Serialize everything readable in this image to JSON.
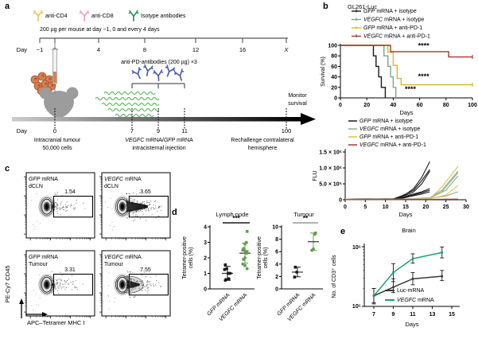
{
  "panels": {
    "a": "a",
    "b": "b",
    "c": "c",
    "d": "d",
    "e": "e"
  },
  "panel_a": {
    "antibody_legend": [
      {
        "label": "anti-CD4",
        "color": "#ecc95e"
      },
      {
        "label": "anti-CD8",
        "color": "#f2a6b4"
      },
      {
        "label": "Isotype antibodies",
        "color": "#27995a"
      }
    ],
    "dose_text": "200 µg per mouse at day −1, 0 and every 4 days",
    "day_axis_label": "Day",
    "top_days": [
      "−1",
      "0",
      "4",
      "8",
      "12",
      "16",
      "X"
    ],
    "anti_pd_text": "anti-PD-antibodies (200 µg) ×3",
    "anti_pd_color": "#4d5fa8",
    "mrna_color": "#49b04f",
    "bottom_day_label": "Day",
    "bottom_days": [
      "0",
      "7",
      "9",
      "11",
      "100"
    ],
    "monitor_lines": [
      "Monitor",
      "survival"
    ],
    "caption_tumour": [
      "Intracranial tumour",
      "50,000 cells"
    ],
    "caption_mrna": [
      "VEGFC mRNA/GFP mRNA",
      "intracisternal injection"
    ],
    "caption_rechallenge": [
      "Rechallenge contralateral",
      "hemisphere"
    ]
  },
  "panel_c": {
    "xlabel": "APC–Tetramer MHC I",
    "ylabel": "PE-Cy7 CD45",
    "plots": [
      {
        "title_line1": "GFP mRNA",
        "title_line2": "dCLN",
        "value": "1.54",
        "density": "low"
      },
      {
        "title_line1": "VEGFC mRNA",
        "title_line2": "dCLN",
        "value": "3.65",
        "density": "high"
      },
      {
        "title_line1": "GFP mRNA",
        "title_line2": "Tumour",
        "value": "3.31",
        "density": "low"
      },
      {
        "title_line1": "VEGFC mRNA",
        "title_line2": "Tumour",
        "value": "7.55",
        "density": "med"
      }
    ]
  },
  "chart_data": [
    {
      "id": "survival",
      "type": "line",
      "title": "GL261-Luc",
      "xlabel": "Days",
      "ylabel": "Survival (%)",
      "xlim": [
        0,
        100
      ],
      "ylim": [
        0,
        100
      ],
      "xticks": [
        0,
        20,
        40,
        60,
        80,
        100
      ],
      "yticks": [
        0,
        20,
        40,
        60,
        80,
        100
      ],
      "legend_position": "top",
      "series": [
        {
          "name": "GFP mRNA + isotype",
          "color": "#1a1a1a",
          "points": [
            [
              0,
              100
            ],
            [
              25,
              100
            ],
            [
              25,
              80
            ],
            [
              27,
              80
            ],
            [
              27,
              60
            ],
            [
              29,
              60
            ],
            [
              29,
              40
            ],
            [
              31,
              40
            ],
            [
              31,
              20
            ],
            [
              34,
              20
            ],
            [
              34,
              0
            ]
          ]
        },
        {
          "name": "VEGFC mRNA + isotype",
          "color": "#7ca687",
          "points": [
            [
              0,
              100
            ],
            [
              33,
              100
            ],
            [
              33,
              80
            ],
            [
              36,
              80
            ],
            [
              36,
              60
            ],
            [
              38,
              60
            ],
            [
              38,
              40
            ],
            [
              40,
              40
            ],
            [
              40,
              20
            ],
            [
              42,
              20
            ],
            [
              42,
              0
            ]
          ]
        },
        {
          "name": "GFP mRNA + anti-PD-1",
          "color": "#d9b62f",
          "points": [
            [
              0,
              100
            ],
            [
              36,
              100
            ],
            [
              36,
              87
            ],
            [
              40,
              87
            ],
            [
              40,
              62
            ],
            [
              43,
              62
            ],
            [
              43,
              37
            ],
            [
              46,
              37
            ],
            [
              46,
              25
            ],
            [
              100,
              25
            ]
          ]
        },
        {
          "name": "VEGFC mRNA + anti-PD-1",
          "color": "#9e3a2d",
          "points": [
            [
              0,
              100
            ],
            [
              38,
              100
            ],
            [
              38,
              88
            ],
            [
              82,
              88
            ],
            [
              82,
              78
            ],
            [
              100,
              78
            ]
          ]
        }
      ],
      "annotations": [
        {
          "text": "****",
          "x": 63,
          "y": 95
        },
        {
          "text": "****",
          "x": 63,
          "y": 36
        },
        {
          "text": "****",
          "x": 53,
          "y": 12
        }
      ]
    },
    {
      "id": "flu",
      "type": "line",
      "xlabel": "Days",
      "ylabel": "FLU",
      "xlim": [
        0,
        30
      ],
      "ylim": [
        0,
        1500000
      ],
      "xticks": [
        0,
        5,
        10,
        15,
        20,
        25,
        30
      ],
      "yticks": [
        0,
        500000,
        1000000,
        1500000
      ],
      "ytick_labels": [
        "0",
        "5.0 × 10⁵",
        "1.0 × 10⁶",
        "1.5 × 10⁶"
      ],
      "legend": [
        "GFP mRNA + isotype",
        "VEGFC mRNA + isotype",
        "GFP mRNA + anti-PD-1",
        "VEGFC mRNA + anti-PD-1"
      ],
      "legend_colors": [
        "#1a1a1a",
        "#8fae90",
        "#e0c04a",
        "#9e3a2d"
      ],
      "series": [
        {
          "group": "GFP mRNA + isotype",
          "color": "#1a1a1a",
          "points": [
            [
              0,
              10000
            ],
            [
              12,
              30000
            ],
            [
              14,
              80000
            ],
            [
              17,
              350000
            ],
            [
              19,
              700000
            ],
            [
              21,
              1200000
            ]
          ]
        },
        {
          "group": "GFP mRNA + isotype",
          "color": "#1a1a1a",
          "points": [
            [
              0,
              10000
            ],
            [
              12,
              30000
            ],
            [
              14,
              120000
            ],
            [
              17,
              300000
            ],
            [
              19,
              600000
            ],
            [
              21,
              950000
            ]
          ]
        },
        {
          "group": "GFP mRNA + isotype",
          "color": "#1a1a1a",
          "points": [
            [
              0,
              10000
            ],
            [
              12,
              20000
            ],
            [
              14,
              90000
            ],
            [
              17,
              250000
            ],
            [
              19,
              500000
            ],
            [
              21,
              900000
            ]
          ]
        },
        {
          "group": "GFP mRNA + isotype",
          "color": "#1a1a1a",
          "points": [
            [
              0,
              10000
            ],
            [
              12,
              20000
            ],
            [
              14,
              60000
            ],
            [
              16,
              150000
            ],
            [
              19,
              250000
            ],
            [
              21,
              350000
            ]
          ]
        },
        {
          "group": "GFP mRNA + isotype",
          "color": "#1a1a1a",
          "points": [
            [
              0,
              10000
            ],
            [
              12,
              20000
            ],
            [
              14,
              50000
            ],
            [
              16,
              120000
            ],
            [
              19,
              220000
            ],
            [
              21,
              300000
            ]
          ]
        },
        {
          "group": "GFP mRNA + isotype",
          "color": "#1a1a1a",
          "points": [
            [
              0,
              5000
            ],
            [
              12,
              15000
            ],
            [
              14,
              40000
            ],
            [
              16,
              100000
            ],
            [
              19,
              180000
            ],
            [
              21,
              250000
            ]
          ]
        },
        {
          "group": "VEGFC mRNA + isotype",
          "color": "#8fae90",
          "points": [
            [
              0,
              5000
            ],
            [
              14,
              20000
            ],
            [
              21,
              60000
            ],
            [
              24,
              300000
            ],
            [
              28,
              900000
            ]
          ]
        },
        {
          "group": "VEGFC mRNA + isotype",
          "color": "#8fae90",
          "points": [
            [
              0,
              5000
            ],
            [
              14,
              20000
            ],
            [
              21,
              50000
            ],
            [
              24,
              250000
            ],
            [
              28,
              850000
            ]
          ]
        },
        {
          "group": "VEGFC mRNA + isotype",
          "color": "#8fae90",
          "points": [
            [
              0,
              5000
            ],
            [
              14,
              15000
            ],
            [
              21,
              50000
            ],
            [
              25,
              300000
            ],
            [
              28,
              750000
            ]
          ]
        },
        {
          "group": "VEGFC mRNA + isotype",
          "color": "#8fae90",
          "points": [
            [
              0,
              5000
            ],
            [
              14,
              10000
            ],
            [
              21,
              40000
            ],
            [
              25,
              120000
            ],
            [
              28,
              250000
            ]
          ]
        },
        {
          "group": "GFP mRNA + anti-PD-1",
          "color": "#e0c04a",
          "points": [
            [
              0,
              5000
            ],
            [
              14,
              15000
            ],
            [
              21,
              30000
            ],
            [
              24,
              400000
            ],
            [
              28,
              1050000
            ]
          ]
        },
        {
          "group": "GFP mRNA + anti-PD-1",
          "color": "#e0c04a",
          "points": [
            [
              0,
              5000
            ],
            [
              14,
              10000
            ],
            [
              21,
              25000
            ],
            [
              25,
              150000
            ],
            [
              28,
              450000
            ]
          ]
        },
        {
          "group": "VEGFC mRNA + anti-PD-1",
          "color": "#9e3a2d",
          "points": [
            [
              0,
              3000
            ],
            [
              14,
              8000
            ],
            [
              21,
              12000
            ],
            [
              28,
              20000
            ]
          ]
        },
        {
          "group": "VEGFC mRNA + anti-PD-1",
          "color": "#9e3a2d",
          "points": [
            [
              0,
              3000
            ],
            [
              14,
              6000
            ],
            [
              21,
              10000
            ],
            [
              28,
              15000
            ]
          ]
        }
      ]
    },
    {
      "id": "lymph_node",
      "type": "scatter",
      "title": "Lymph node",
      "ylabel_lines": [
        "Tetramer-positive",
        "cells (%)"
      ],
      "ylim": [
        0,
        4
      ],
      "yticks": [
        0,
        1,
        2,
        3,
        4
      ],
      "sig": "***",
      "sig_color": "#1a1a1a",
      "groups": [
        {
          "name": "GFP mRNA",
          "color": "#1a1a1a",
          "values": [
            1.55,
            1.3,
            1.25,
            1.0,
            1.0,
            0.65,
            0.6,
            0.55
          ],
          "mean": 1.0,
          "err": [
            0.55,
            1.45
          ]
        },
        {
          "name": "VEGFC mRNA",
          "color": "#5fa04e",
          "values": [
            3.7,
            3.0,
            2.9,
            2.6,
            2.5,
            2.45,
            2.4,
            2.35,
            2.3,
            2.0,
            1.9,
            1.6,
            1.5,
            1.3
          ],
          "mean": 2.3,
          "err": [
            1.65,
            2.95
          ]
        }
      ]
    },
    {
      "id": "tumour",
      "type": "scatter",
      "title": "Tumour",
      "ylabel_lines": [
        "Tetramer-positive",
        "cells (%)"
      ],
      "ylim": [
        0,
        10
      ],
      "yticks": [
        0,
        2,
        4,
        6,
        8,
        10
      ],
      "sig": "**",
      "sig_color": "#999999",
      "groups": [
        {
          "name": "GFP mRNA",
          "color": "#1a1a1a",
          "values": [
            3.5,
            2.7,
            1.9
          ],
          "mean": 2.7,
          "err": [
            1.95,
            3.5
          ]
        },
        {
          "name": "VEGFC mRNA",
          "color": "#5fa04e",
          "values": [
            9.0,
            8.8,
            6.4,
            6.2
          ],
          "mean": 7.6,
          "err": [
            6.2,
            9.0
          ]
        }
      ]
    },
    {
      "id": "brain",
      "type": "line",
      "title": "Brain",
      "xlabel": "Days",
      "ylabel": "No. of CD3⁺ cells",
      "yscale": "log",
      "ylim": [
        100000,
        1000000
      ],
      "ytick_labels": [
        "10⁵",
        "10⁶"
      ],
      "xticks": [
        7,
        9,
        11,
        13,
        15
      ],
      "series": [
        {
          "name": "Luc-mRNA",
          "color": "#3a3a3a",
          "x": [
            7,
            9,
            11,
            14
          ],
          "y": [
            150000,
            210000,
            290000,
            320000
          ],
          "err_low": [
            110000,
            170000,
            230000,
            270000
          ],
          "err_high": [
            200000,
            290000,
            370000,
            400000
          ]
        },
        {
          "name": "VEGFC mRNA",
          "color": "#1b9e77",
          "x": [
            7,
            9,
            11,
            14
          ],
          "y": [
            150000,
            370000,
            630000,
            800000
          ],
          "err_low": [
            115000,
            260000,
            530000,
            650000
          ],
          "err_high": [
            200000,
            520000,
            760000,
            990000
          ]
        }
      ]
    }
  ]
}
